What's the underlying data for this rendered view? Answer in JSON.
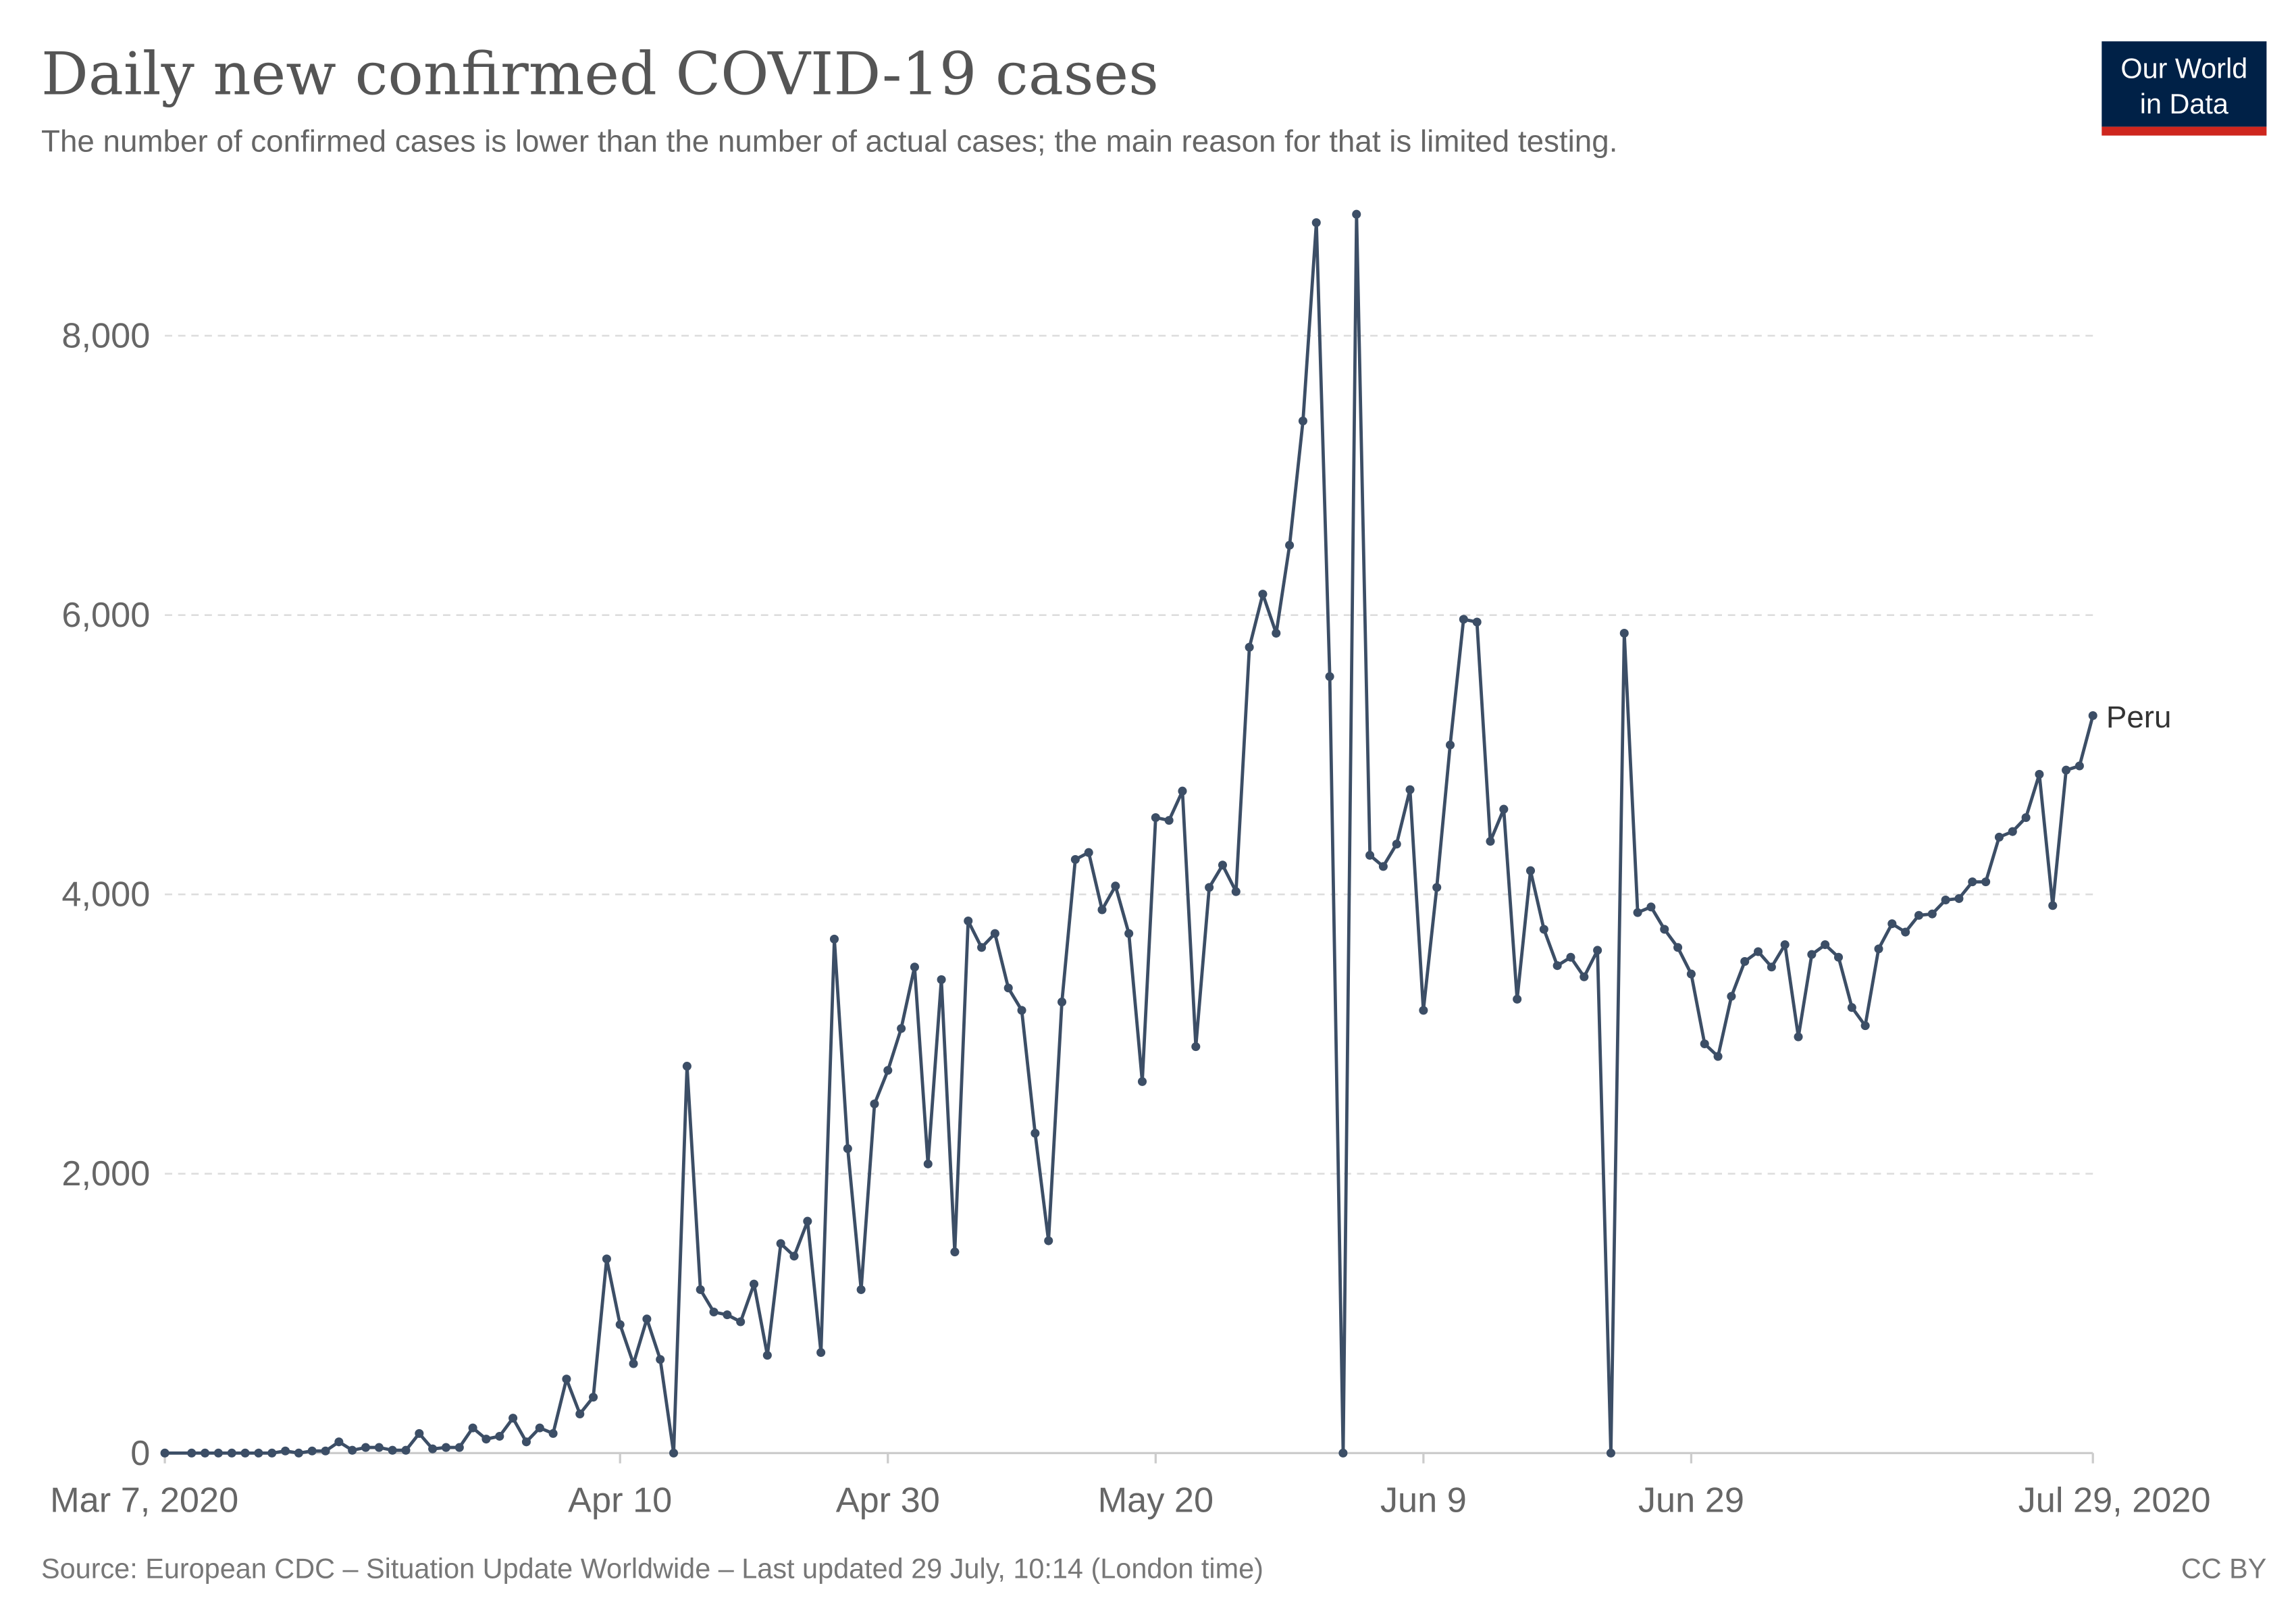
{
  "title": "Daily new confirmed COVID-19 cases",
  "subtitle": "The number of confirmed cases is lower than the number of actual cases; the main reason for that is limited testing.",
  "logo": {
    "line1": "Our World",
    "line2": "in Data",
    "bg": "#002147",
    "accent": "#ce261e"
  },
  "footer": {
    "source": "Source: European CDC – Situation Update Worldwide – Last updated 29 July, 10:14 (London time)",
    "license": "CC BY"
  },
  "chart_data": {
    "type": "line",
    "title": "Daily new confirmed COVID-19 cases",
    "xlabel": "",
    "ylabel": "",
    "x_start": "Mar 7, 2020",
    "x_end": "Jul 29, 2020",
    "xlim_days": [
      0,
      144
    ],
    "ylim": [
      0,
      8900
    ],
    "grid": true,
    "y_ticks": [
      {
        "v": 0,
        "label": "0"
      },
      {
        "v": 2000,
        "label": "2,000"
      },
      {
        "v": 4000,
        "label": "4,000"
      },
      {
        "v": 6000,
        "label": "6,000"
      },
      {
        "v": 8000,
        "label": "8,000"
      }
    ],
    "x_ticks": [
      {
        "day": 0,
        "label": "Mar 7, 2020"
      },
      {
        "day": 34,
        "label": "Apr 10"
      },
      {
        "day": 54,
        "label": "Apr 30"
      },
      {
        "day": 74,
        "label": "May 20"
      },
      {
        "day": 94,
        "label": "Jun 9"
      },
      {
        "day": 114,
        "label": "Jun 29"
      },
      {
        "day": 144,
        "label": "Jul 29, 2020"
      }
    ],
    "series": [
      {
        "name": "Peru",
        "color": "#3c4e66",
        "values": [
          0,
          0,
          0,
          0,
          0,
          0,
          0,
          0,
          0,
          15,
          0,
          15,
          15,
          80,
          20,
          40,
          40,
          20,
          20,
          140,
          30,
          40,
          40,
          180,
          100,
          120,
          250,
          80,
          180,
          140,
          530,
          280,
          400,
          1390,
          920,
          640,
          960,
          670,
          0,
          2770,
          1170,
          1010,
          990,
          940,
          1210,
          700,
          1500,
          1410,
          1660,
          720,
          3680,
          2180,
          1170,
          2500,
          2740,
          3040,
          3480,
          2070,
          3390,
          1440,
          3810,
          3620,
          3720,
          3330,
          3170,
          2290,
          1520,
          3230,
          4250,
          4300,
          3890,
          4060,
          3720,
          2660,
          4550,
          4530,
          4740,
          2910,
          4050,
          4210,
          4020,
          5770,
          6150,
          5870,
          6500,
          7390,
          8810,
          5560,
          0,
          8870,
          4280,
          4200,
          4360,
          4750,
          3170,
          4050,
          5070,
          5970,
          5950,
          4380,
          4610,
          3250,
          4170,
          3750,
          3490,
          3550,
          3410,
          3600,
          0,
          5870,
          3870,
          3910,
          3750,
          3620,
          3430,
          2930,
          2840,
          3270,
          3520,
          3590,
          3480,
          3640,
          2980,
          3570,
          3640,
          3550,
          3190,
          3060,
          3610,
          3790,
          3730,
          3850,
          3860,
          3960,
          3970,
          4090,
          4090,
          4410,
          4450,
          4550,
          4860,
          3920,
          4890,
          4920,
          5280
        ]
      }
    ]
  }
}
